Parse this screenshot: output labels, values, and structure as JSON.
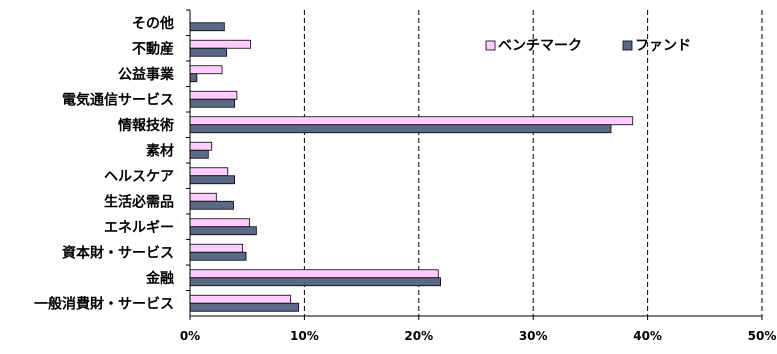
{
  "chart_data": {
    "type": "bar",
    "orientation": "horizontal",
    "categories": [
      "その他",
      "不動産",
      "公益事業",
      "電気通信サービス",
      "情報技術",
      "素材",
      "ヘルスケア",
      "生活必需品",
      "エネルギー",
      "資本財・サービス",
      "金融",
      "一般消費財・サービス"
    ],
    "series": [
      {
        "name": "ベンチマーク",
        "color": "#ffccff",
        "values": [
          0.0,
          5.3,
          2.8,
          4.1,
          38.7,
          1.9,
          3.3,
          2.3,
          5.2,
          4.6,
          21.7,
          8.8
        ]
      },
      {
        "name": "ファンド",
        "color": "#5a6a85",
        "values": [
          3.0,
          3.2,
          0.6,
          3.9,
          36.8,
          1.6,
          3.9,
          3.8,
          5.8,
          4.9,
          21.9,
          9.5
        ]
      }
    ],
    "xlim": [
      0,
      50
    ],
    "xticks": [
      "0%",
      "10%",
      "20%",
      "30%",
      "40%",
      "50%"
    ],
    "grid": "vertical-dashed",
    "legend_position": "top-right"
  }
}
